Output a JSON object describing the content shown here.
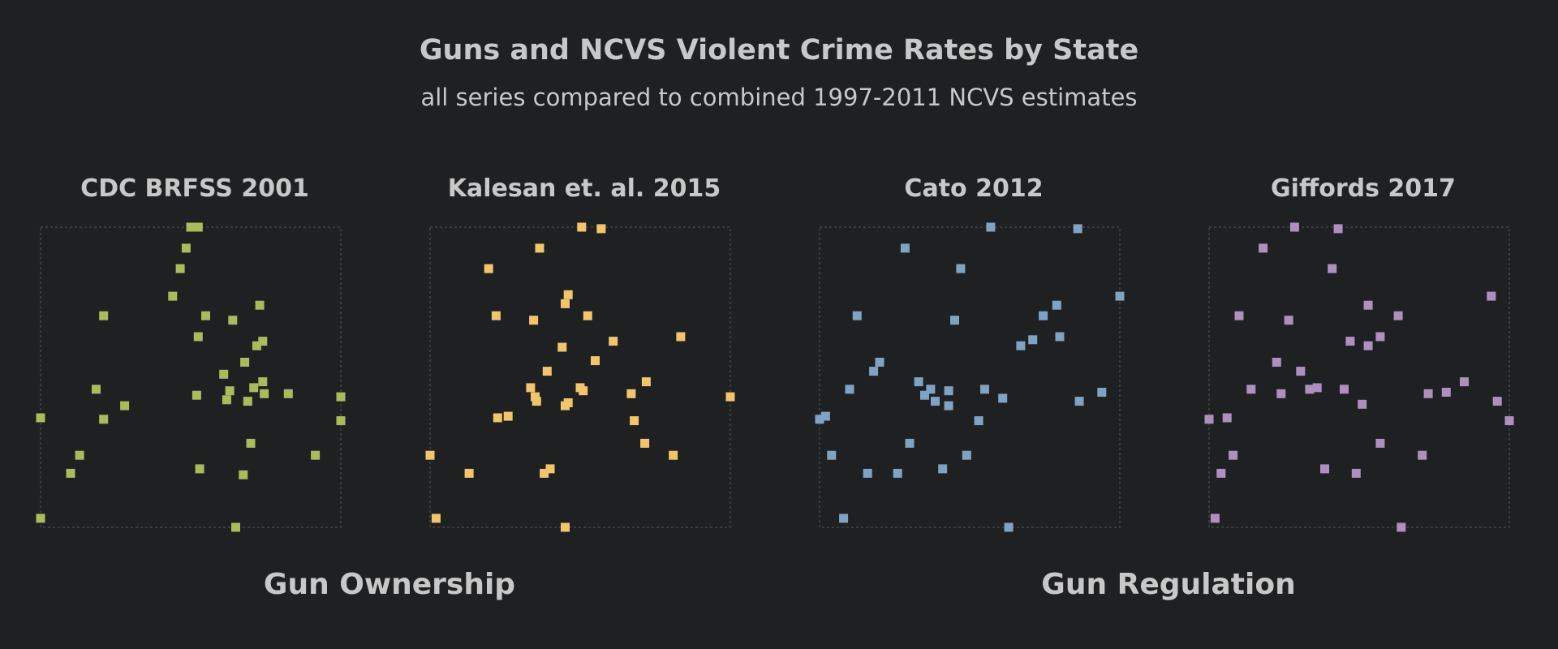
{
  "title": "Guns and NCVS Violent Crime Rates by State",
  "subtitle": "all series compared to combined 1997-2011 NCVS estimates",
  "groups": [
    "Gun Ownership",
    "Gun Regulation"
  ],
  "colors": {
    "background": "#1f2022",
    "text": "#c8c8c8",
    "frame": "#444444",
    "CDC BRFSS 2001": "#a9bc5c",
    "Kalesan et. al. 2015": "#f2c46d",
    "Cato 2012": "#7fa3c4",
    "Giffords 2017": "#ae8fc0"
  },
  "chart_data": [
    {
      "type": "scatter",
      "title": "CDC BRFSS 2001",
      "group": "Gun Ownership",
      "xlim": [
        0,
        1
      ],
      "ylim": [
        0,
        1
      ],
      "grid": false,
      "points": [
        [
          0.5,
          1.0
        ],
        [
          0.525,
          1.0
        ],
        [
          0.485,
          0.93
        ],
        [
          0.465,
          0.862
        ],
        [
          0.44,
          0.77
        ],
        [
          0.73,
          0.74
        ],
        [
          0.55,
          0.705
        ],
        [
          0.64,
          0.69
        ],
        [
          0.21,
          0.705
        ],
        [
          0.525,
          0.635
        ],
        [
          0.74,
          0.62
        ],
        [
          0.72,
          0.605
        ],
        [
          0.68,
          0.55
        ],
        [
          0.61,
          0.51
        ],
        [
          0.74,
          0.485
        ],
        [
          0.71,
          0.465
        ],
        [
          0.63,
          0.455
        ],
        [
          0.745,
          0.445
        ],
        [
          0.825,
          0.445
        ],
        [
          0.52,
          0.44
        ],
        [
          0.185,
          0.46
        ],
        [
          0.62,
          0.425
        ],
        [
          0.69,
          0.42
        ],
        [
          0.28,
          0.405
        ],
        [
          1.0,
          0.435
        ],
        [
          0.0,
          0.365
        ],
        [
          0.21,
          0.36
        ],
        [
          1.0,
          0.355
        ],
        [
          0.7,
          0.28
        ],
        [
          0.915,
          0.24
        ],
        [
          0.13,
          0.24
        ],
        [
          0.53,
          0.195
        ],
        [
          0.1,
          0.18
        ],
        [
          0.675,
          0.175
        ],
        [
          0.0,
          0.03
        ],
        [
          0.65,
          0.0
        ]
      ]
    },
    {
      "type": "scatter",
      "title": "Kalesan et. al. 2015",
      "group": "Gun Ownership",
      "xlim": [
        0,
        1
      ],
      "ylim": [
        0,
        1
      ],
      "grid": false,
      "points": [
        [
          0.505,
          1.0
        ],
        [
          0.57,
          0.995
        ],
        [
          0.365,
          0.93
        ],
        [
          0.195,
          0.862
        ],
        [
          0.46,
          0.775
        ],
        [
          0.45,
          0.745
        ],
        [
          0.525,
          0.705
        ],
        [
          0.22,
          0.705
        ],
        [
          0.345,
          0.69
        ],
        [
          0.835,
          0.635
        ],
        [
          0.61,
          0.62
        ],
        [
          0.44,
          0.6
        ],
        [
          0.55,
          0.555
        ],
        [
          0.39,
          0.52
        ],
        [
          0.72,
          0.485
        ],
        [
          0.335,
          0.465
        ],
        [
          0.5,
          0.465
        ],
        [
          0.35,
          0.435
        ],
        [
          0.67,
          0.445
        ],
        [
          0.51,
          0.455
        ],
        [
          0.355,
          0.42
        ],
        [
          1.0,
          0.435
        ],
        [
          0.46,
          0.415
        ],
        [
          0.45,
          0.405
        ],
        [
          0.225,
          0.365
        ],
        [
          0.26,
          0.37
        ],
        [
          0.68,
          0.355
        ],
        [
          0.715,
          0.28
        ],
        [
          0.0,
          0.24
        ],
        [
          0.81,
          0.24
        ],
        [
          0.4,
          0.195
        ],
        [
          0.13,
          0.18
        ],
        [
          0.38,
          0.18
        ],
        [
          0.02,
          0.03
        ],
        [
          0.45,
          0.0
        ]
      ]
    },
    {
      "type": "scatter",
      "title": "Cato 2012",
      "group": "Gun Regulation",
      "xlim": [
        0,
        1
      ],
      "ylim": [
        0,
        1
      ],
      "grid": false,
      "points": [
        [
          0.57,
          1.0
        ],
        [
          0.86,
          0.995
        ],
        [
          0.285,
          0.93
        ],
        [
          0.47,
          0.862
        ],
        [
          1.0,
          0.77
        ],
        [
          0.79,
          0.74
        ],
        [
          0.125,
          0.705
        ],
        [
          0.745,
          0.705
        ],
        [
          0.45,
          0.69
        ],
        [
          0.8,
          0.635
        ],
        [
          0.71,
          0.625
        ],
        [
          0.67,
          0.605
        ],
        [
          0.2,
          0.55
        ],
        [
          0.18,
          0.52
        ],
        [
          0.33,
          0.485
        ],
        [
          0.43,
          0.455
        ],
        [
          0.1,
          0.46
        ],
        [
          0.37,
          0.46
        ],
        [
          0.55,
          0.46
        ],
        [
          0.35,
          0.44
        ],
        [
          0.94,
          0.45
        ],
        [
          0.61,
          0.43
        ],
        [
          0.385,
          0.42
        ],
        [
          0.865,
          0.42
        ],
        [
          0.43,
          0.405
        ],
        [
          0.0,
          0.36
        ],
        [
          0.02,
          0.37
        ],
        [
          0.53,
          0.355
        ],
        [
          0.3,
          0.28
        ],
        [
          0.04,
          0.24
        ],
        [
          0.49,
          0.24
        ],
        [
          0.16,
          0.18
        ],
        [
          0.26,
          0.18
        ],
        [
          0.41,
          0.195
        ],
        [
          0.08,
          0.03
        ],
        [
          0.63,
          0.0
        ]
      ]
    },
    {
      "type": "scatter",
      "title": "Giffords 2017",
      "group": "Gun Regulation",
      "xlim": [
        0,
        1
      ],
      "ylim": [
        0,
        1
      ],
      "grid": false,
      "points": [
        [
          0.285,
          1.0
        ],
        [
          0.43,
          0.995
        ],
        [
          0.18,
          0.93
        ],
        [
          0.41,
          0.862
        ],
        [
          0.94,
          0.77
        ],
        [
          0.53,
          0.74
        ],
        [
          0.1,
          0.705
        ],
        [
          0.63,
          0.705
        ],
        [
          0.265,
          0.69
        ],
        [
          0.57,
          0.635
        ],
        [
          0.47,
          0.62
        ],
        [
          0.53,
          0.605
        ],
        [
          0.225,
          0.55
        ],
        [
          0.305,
          0.52
        ],
        [
          0.85,
          0.485
        ],
        [
          0.14,
          0.46
        ],
        [
          0.335,
          0.46
        ],
        [
          0.36,
          0.465
        ],
        [
          0.45,
          0.46
        ],
        [
          0.73,
          0.445
        ],
        [
          0.79,
          0.45
        ],
        [
          0.24,
          0.445
        ],
        [
          0.51,
          0.41
        ],
        [
          0.96,
          0.42
        ],
        [
          0.06,
          0.365
        ],
        [
          0.0,
          0.36
        ],
        [
          1.0,
          0.355
        ],
        [
          0.57,
          0.28
        ],
        [
          0.08,
          0.24
        ],
        [
          0.71,
          0.24
        ],
        [
          0.385,
          0.195
        ],
        [
          0.49,
          0.18
        ],
        [
          0.04,
          0.18
        ],
        [
          0.02,
          0.03
        ],
        [
          0.64,
          0.0
        ]
      ]
    }
  ]
}
